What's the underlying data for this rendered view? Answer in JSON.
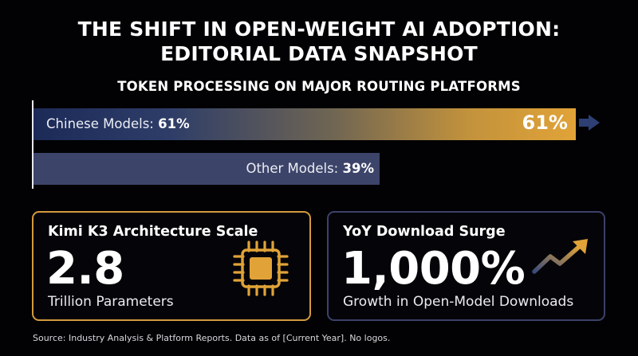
{
  "title": {
    "line1": "THE SHIFT IN OPEN-WEIGHT AI ADOPTION:",
    "line2": "EDITORIAL DATA SNAPSHOT"
  },
  "colors": {
    "background": "#020204",
    "accent_gold": "#e1a338",
    "bar_navy": "#1c2a58",
    "bar_other": "#3c4469",
    "card_border_gold": "#d29a3e",
    "card_border_navy": "#3b4169"
  },
  "chart_data": {
    "type": "bar",
    "orientation": "horizontal",
    "title": "TOKEN PROCESSING ON MAJOR ROUTING PLATFORMS",
    "categories": [
      "Chinese Models",
      "Other Models"
    ],
    "values": [
      61,
      39
    ],
    "value_labels": [
      "61%",
      "39%"
    ],
    "unit": "%",
    "xlim": [
      0,
      100
    ],
    "grid": false,
    "legend": "none",
    "bars": [
      {
        "label": "Chinese Models:",
        "value_text": "61%",
        "end_label": "61%"
      },
      {
        "label": "Other Models:",
        "value_text": "39%"
      }
    ]
  },
  "cards": {
    "kimi": {
      "title": "Kimi K3 Architecture Scale",
      "value": "2.8",
      "caption": "Trillion Parameters",
      "icon": "chip-icon"
    },
    "yoy": {
      "title": "YoY Download Surge",
      "value": "1,000%",
      "caption": "Growth in Open-Model Downloads",
      "icon": "trend-up-icon"
    }
  },
  "footer": {
    "source": "Source: Industry Analysis & Platform Reports. Data as of [Current Year]. No logos."
  }
}
